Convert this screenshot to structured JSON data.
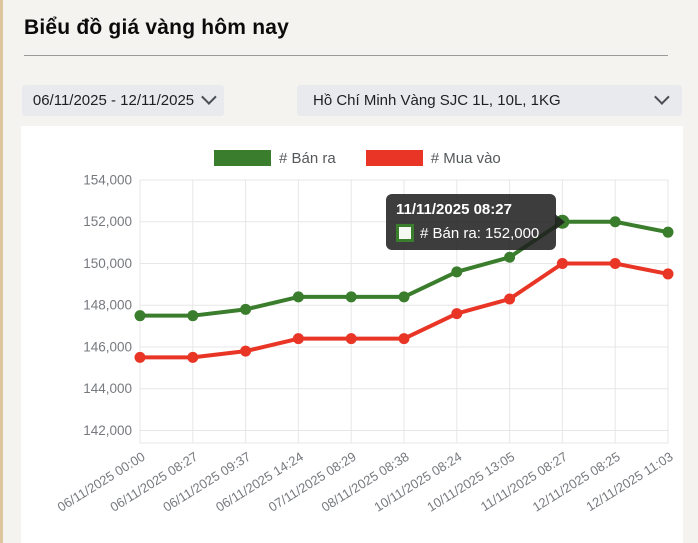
{
  "page": {
    "title": "Biểu đồ giá vàng hôm nay"
  },
  "filters": {
    "date_range": {
      "value": "06/11/2025 - 12/11/2025"
    },
    "product": {
      "value": "Hồ Chí Minh Vàng SJC 1L, 10L, 1KG"
    }
  },
  "legend": [
    {
      "label": "# Bán ra",
      "color": "#3a7d2c"
    },
    {
      "label": "# Mua vào",
      "color": "#e93526"
    }
  ],
  "tooltip": {
    "title": "11/11/2025 08:27",
    "label": "# Bán ra: 152,000",
    "series_color": "#3a7d2c"
  },
  "colors": {
    "sell": "#3a7d2c",
    "buy": "#e93526",
    "grid": "#e7e7e7",
    "axis_text": "#76797e",
    "panel": "#ffffff",
    "page_bg": "#f5f3ef",
    "accent_strip": "#ddc69e",
    "dropdown_bg": "#e9eaee",
    "tooltip_bg": "rgba(32,32,32,0.87)"
  },
  "chart_data": {
    "type": "line",
    "x": [
      "06/11/2025 00:00",
      "06/11/2025 08:27",
      "06/11/2025 09:37",
      "06/11/2025 14:24",
      "07/11/2025 08:29",
      "08/11/2025 08:38",
      "10/11/2025 08:24",
      "10/11/2025 13:05",
      "11/11/2025 08:27",
      "12/11/2025 08:25",
      "12/11/2025 11:03"
    ],
    "series": [
      {
        "name": "# Bán ra",
        "color": "#3a7d2c",
        "values": [
          147500,
          147500,
          147800,
          148400,
          148400,
          148400,
          149600,
          150300,
          152000,
          152000,
          151500
        ]
      },
      {
        "name": "# Mua vào",
        "color": "#e93526",
        "values": [
          145500,
          145500,
          145800,
          146400,
          146400,
          146400,
          147600,
          148300,
          150000,
          150000,
          149500
        ]
      }
    ],
    "title": "",
    "xlabel": "",
    "ylabel": "",
    "yticks": [
      142000,
      144000,
      146000,
      148000,
      150000,
      152000,
      154000
    ],
    "ylim": [
      141400,
      154000
    ],
    "grid": true,
    "legend_position": "top",
    "highlight": {
      "series": 0,
      "index": 8,
      "value_label": "152,000"
    }
  }
}
